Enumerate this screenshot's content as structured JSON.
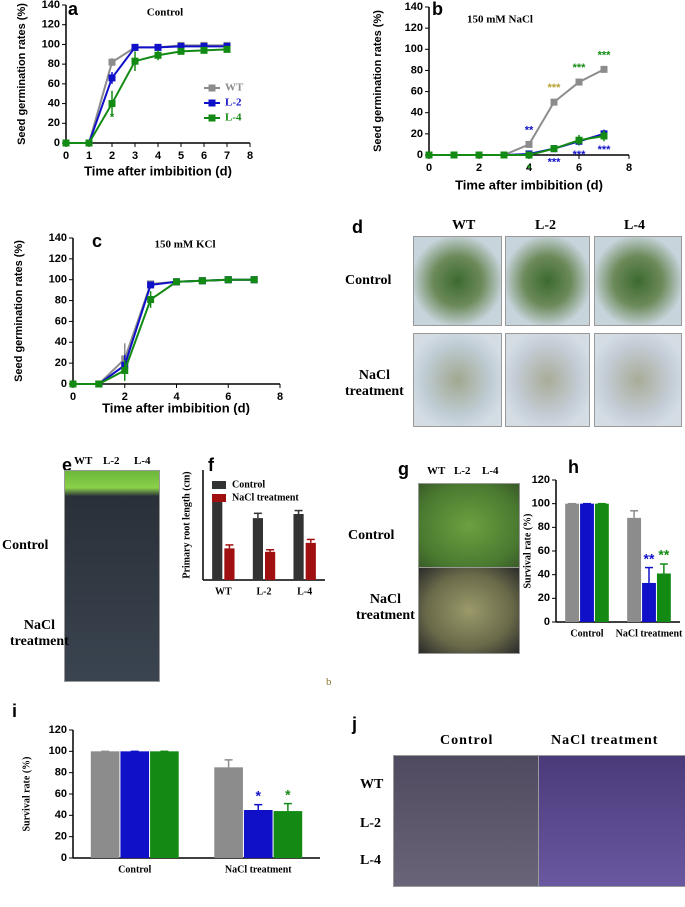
{
  "chart_data": [
    {
      "type": "line",
      "panel_label": "a",
      "title": "Control",
      "x_label": "Time after imbibition (d)",
      "y_label": "Seed germination rates (%)",
      "x": [
        0,
        1,
        2,
        3,
        4,
        5,
        6,
        7
      ],
      "xlim": [
        0,
        8
      ],
      "xticks": [
        0,
        1,
        2,
        3,
        4,
        5,
        6,
        7,
        8
      ],
      "ylim": [
        0,
        140
      ],
      "yticks": [
        0,
        20,
        40,
        60,
        80,
        100,
        120,
        140
      ],
      "legend": "right",
      "series": [
        {
          "name": "WT",
          "color": "#8c8c8c",
          "values": [
            0,
            0,
            82,
            97,
            97,
            99,
            99,
            99
          ],
          "errors": [
            0,
            0,
            4,
            2,
            2,
            1,
            1,
            1
          ]
        },
        {
          "name": "L-2",
          "color": "#1010c8",
          "values": [
            0,
            0,
            66,
            97,
            97,
            98,
            98,
            98
          ],
          "errors": [
            0,
            0,
            6,
            2,
            2,
            1,
            1,
            1
          ]
        },
        {
          "name": "L-4",
          "color": "#138a13",
          "values": [
            0,
            0,
            40,
            83,
            89,
            93,
            94,
            95
          ],
          "errors": [
            0,
            0,
            13,
            10,
            5,
            3,
            2,
            2
          ]
        }
      ],
      "annotations": [
        {
          "text": "*",
          "x": 2,
          "color": "#138a13",
          "position": "below"
        }
      ]
    },
    {
      "type": "line",
      "panel_label": "b",
      "title": "150 mM NaCl",
      "x_label": "Time after imbibition (d)",
      "y_label": "Seed germination rates (%)",
      "x": [
        0,
        1,
        2,
        3,
        4,
        5,
        6,
        7
      ],
      "xlim": [
        0,
        8
      ],
      "xticks": [
        0,
        2,
        4,
        6,
        8
      ],
      "ylim": [
        0,
        140
      ],
      "yticks": [
        0,
        20,
        40,
        60,
        80,
        100,
        120,
        140
      ],
      "series": [
        {
          "color": "#8c8c8c",
          "values": [
            0,
            0,
            0,
            0,
            10,
            50,
            69,
            81
          ],
          "errors": [
            0,
            0,
            0,
            0,
            1,
            3,
            3,
            1
          ]
        },
        {
          "color": "#1010c8",
          "values": [
            0,
            0,
            0,
            0,
            1,
            6,
            13,
            20
          ],
          "errors": [
            0,
            0,
            0,
            0,
            1,
            1,
            4,
            4
          ]
        },
        {
          "color": "#138a13",
          "values": [
            0,
            0,
            0,
            0,
            0,
            6,
            14,
            18
          ],
          "errors": [
            0,
            0,
            0,
            0,
            1,
            1,
            5,
            5
          ]
        }
      ],
      "annotations": [
        {
          "text": "**",
          "x": 4,
          "color": "#1010c8",
          "position": "above"
        },
        {
          "text": "*",
          "x": 4,
          "color": "#138a13",
          "position": "below"
        },
        {
          "text": "***",
          "x": 5,
          "color": "#b8a030",
          "position": "above"
        },
        {
          "text": "***",
          "x": 5,
          "color": "#1010c8",
          "position": "below"
        },
        {
          "text": "***",
          "x": 6,
          "color": "#138a13",
          "position": "above"
        },
        {
          "text": "***",
          "x": 6,
          "color": "#1010c8",
          "position": "below"
        },
        {
          "text": "***",
          "x": 7,
          "color": "#138a13",
          "position": "above"
        },
        {
          "text": "***",
          "x": 7,
          "color": "#1010c8",
          "position": "below"
        }
      ]
    },
    {
      "type": "line",
      "panel_label": "c",
      "title": "150 mM KCl",
      "x_label": "Time after imbibition (d)",
      "y_label": "Seed germination rates (%)",
      "x": [
        0,
        1,
        2,
        3,
        4,
        5,
        6,
        7
      ],
      "xlim": [
        0,
        8
      ],
      "xticks": [
        0,
        2,
        4,
        6,
        8
      ],
      "ylim": [
        0,
        140
      ],
      "yticks": [
        0,
        20,
        40,
        60,
        80,
        100,
        120,
        140
      ],
      "series": [
        {
          "color": "#8c8c8c",
          "values": [
            0,
            0,
            24,
            96,
            98,
            99,
            100,
            100
          ],
          "errors": [
            0,
            0,
            15,
            2,
            1,
            1,
            1,
            1
          ]
        },
        {
          "color": "#1010c8",
          "values": [
            0,
            0,
            18,
            95,
            98,
            99,
            100,
            100
          ],
          "errors": [
            0,
            0,
            10,
            2,
            1,
            1,
            1,
            1
          ]
        },
        {
          "color": "#138a13",
          "values": [
            0,
            0,
            13,
            81,
            98,
            99,
            100,
            100
          ],
          "errors": [
            0,
            0,
            10,
            8,
            1,
            1,
            1,
            1
          ]
        }
      ]
    },
    {
      "type": "bar",
      "panel_label": "f",
      "y_label": "Primary root length (cm)",
      "categories": [
        "WT",
        "L-2",
        "L-4"
      ],
      "ylim": [
        0,
        8
      ],
      "legend": "top",
      "series": [
        {
          "name": "Control",
          "color": "#333333",
          "values": [
            5.8,
            4.5,
            4.8
          ],
          "errors": [
            0.3,
            0.35,
            0.25
          ]
        },
        {
          "name": "NaCl treatment",
          "color": "#a01010",
          "values": [
            2.3,
            2.05,
            2.7
          ],
          "errors": [
            0.25,
            0.15,
            0.25
          ]
        }
      ]
    },
    {
      "type": "bar",
      "panel_label": "h",
      "y_label": "Survival rate (%)",
      "categories": [
        "Control",
        "NaCl treatment"
      ],
      "ylim": [
        0,
        120
      ],
      "yticks": [
        0,
        20,
        40,
        60,
        80,
        100,
        120
      ],
      "series": [
        {
          "color": "#8c8c8c",
          "values": [
            100,
            88
          ],
          "errors": [
            0,
            6
          ]
        },
        {
          "color": "#1010c8",
          "values": [
            100,
            33
          ],
          "errors": [
            0,
            13
          ]
        },
        {
          "color": "#138a13",
          "values": [
            100,
            41
          ],
          "errors": [
            0,
            8
          ]
        }
      ],
      "annotations": [
        {
          "text": "**",
          "series": 1,
          "index": 1,
          "color": "#1010c8"
        },
        {
          "text": "**",
          "series": 2,
          "index": 1,
          "color": "#138a13"
        }
      ]
    },
    {
      "type": "bar",
      "panel_label": "i",
      "y_label": "Survival rate (%)",
      "categories": [
        "Control",
        "NaCl treatment"
      ],
      "ylim": [
        0,
        120
      ],
      "yticks": [
        0,
        20,
        40,
        60,
        80,
        100,
        120
      ],
      "series": [
        {
          "color": "#8c8c8c",
          "values": [
            100,
            85
          ],
          "errors": [
            0,
            7
          ]
        },
        {
          "color": "#1010c8",
          "values": [
            100,
            45
          ],
          "errors": [
            0,
            5
          ]
        },
        {
          "color": "#138a13",
          "values": [
            100,
            44
          ],
          "errors": [
            0,
            7
          ]
        }
      ],
      "annotations": [
        {
          "text": "*",
          "series": 1,
          "index": 1,
          "color": "#1010c8"
        },
        {
          "text": "*",
          "series": 2,
          "index": 1,
          "color": "#138a13"
        }
      ]
    }
  ],
  "photos": [
    {
      "label": "d",
      "columns": [
        "WT",
        "L-2",
        "L-4"
      ],
      "rows": [
        "Control",
        "NaCl\ntreatment"
      ]
    },
    {
      "label": "e",
      "columns": [
        "WT",
        "L-2",
        "L-4"
      ],
      "rows": [
        "Control",
        "NaCl\ntreatment"
      ]
    },
    {
      "label": "g",
      "columns": [
        "WT",
        "L-2",
        "L-4"
      ],
      "rows": [
        "Control",
        "NaCl\ntreatment"
      ]
    },
    {
      "label": "j",
      "columns": [
        "Control",
        "NaCl treatment"
      ],
      "rows": [
        "WT",
        "L-2",
        "L-4"
      ]
    }
  ],
  "stray_label": "b"
}
